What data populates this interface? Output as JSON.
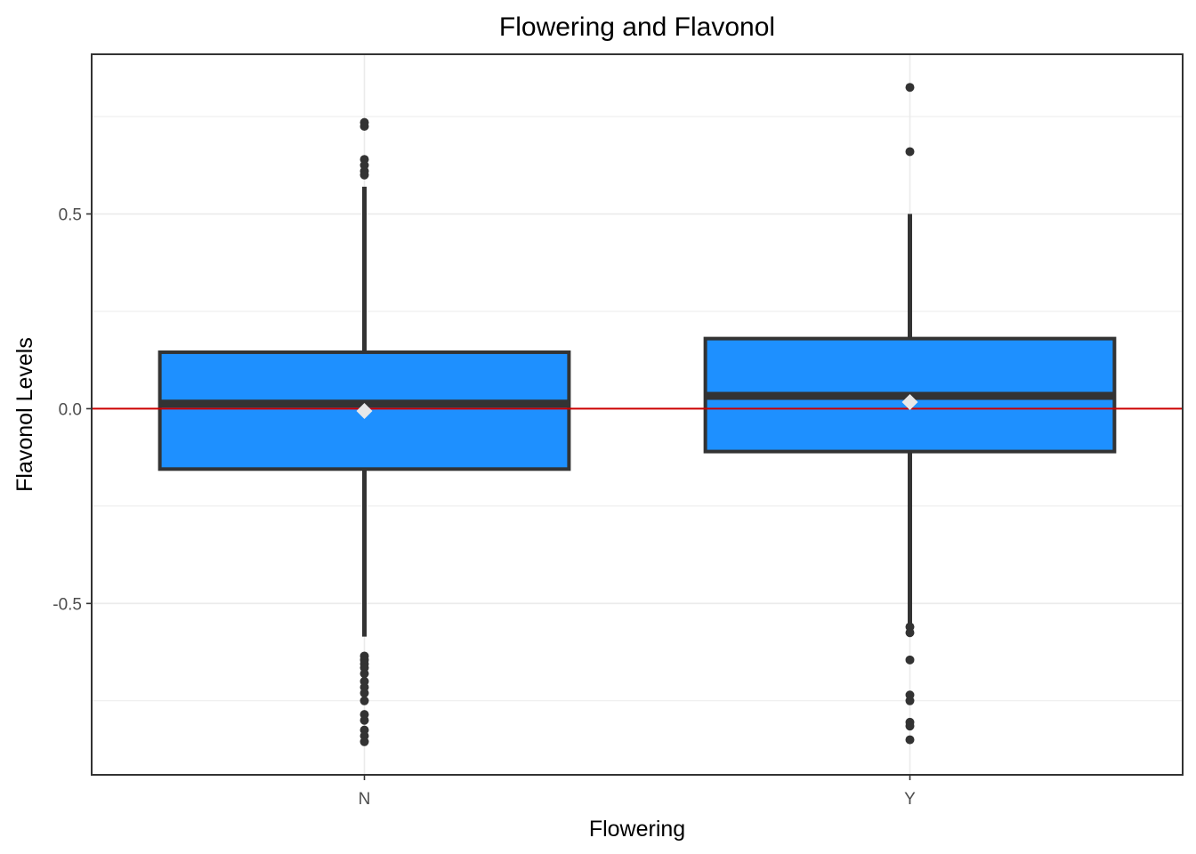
{
  "chart_data": {
    "type": "boxplot",
    "title": "Flowering and Flavonol",
    "xlabel": "Flowering",
    "ylabel": "Flavonol Levels",
    "categories": [
      "N",
      "Y"
    ],
    "ylim": [
      -0.94,
      0.91
    ],
    "y_ticks": [
      -0.5,
      0.0,
      0.5
    ],
    "y_tick_labels": [
      "-0.5",
      "0.0",
      "0.5"
    ],
    "grid": true,
    "legend": "none",
    "reference_line": {
      "y": 0.0,
      "color": "#cc0000"
    },
    "colors": {
      "box_fill": "#1e90ff",
      "box_outline": "#333333",
      "mean_marker": "#e8e8e8",
      "gridline": "#ebebeb"
    },
    "boxes": [
      {
        "category": "N",
        "q1": -0.155,
        "median": 0.013,
        "q3": 0.145,
        "whisker_low": -0.585,
        "whisker_high": 0.57,
        "mean": -0.006,
        "outliers": [
          0.735,
          0.725,
          0.64,
          0.625,
          0.61,
          0.6,
          -0.635,
          -0.645,
          -0.655,
          -0.665,
          -0.68,
          -0.7,
          -0.715,
          -0.73,
          -0.75,
          -0.785,
          -0.8,
          -0.825,
          -0.84,
          -0.855
        ]
      },
      {
        "category": "Y",
        "q1": -0.11,
        "median": 0.033,
        "q3": 0.18,
        "whisker_low": -0.555,
        "whisker_high": 0.5,
        "mean": 0.017,
        "outliers": [
          0.825,
          0.66,
          -0.56,
          -0.575,
          -0.645,
          -0.735,
          -0.75,
          -0.805,
          -0.815,
          -0.85
        ]
      }
    ]
  }
}
